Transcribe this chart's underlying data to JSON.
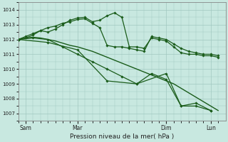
{
  "bg_color": "#c8e8e0",
  "grid_color": "#a0c8c0",
  "line_color": "#1a5c1a",
  "ylim": [
    1006.5,
    1014.5
  ],
  "yticks": [
    1007,
    1008,
    1009,
    1010,
    1011,
    1012,
    1013,
    1014
  ],
  "xlabel": "Pression niveau de la mer( hPa )",
  "xtick_labels": [
    "Sam",
    "Mar",
    "Dim",
    "Lun"
  ],
  "xtick_positions": [
    1,
    8,
    20,
    26
  ],
  "xlim": [
    0,
    28
  ],
  "lines": [
    {
      "x": [
        0,
        1,
        2,
        3,
        4,
        5,
        6,
        7,
        8,
        9,
        10,
        11,
        12,
        13,
        14,
        15,
        16,
        17,
        18,
        19,
        20,
        21,
        22,
        23,
        24,
        25,
        26,
        27
      ],
      "y": [
        1012.0,
        1012.1,
        1012.15,
        1012.1,
        1012.0,
        1011.9,
        1011.75,
        1011.6,
        1011.5,
        1011.35,
        1011.2,
        1011.0,
        1010.8,
        1010.6,
        1010.4,
        1010.2,
        1010.0,
        1009.8,
        1009.6,
        1009.4,
        1009.2,
        1009.0,
        1008.7,
        1008.4,
        1008.1,
        1007.8,
        1007.5,
        1007.2
      ],
      "marker": false,
      "linewidth": 1.0
    },
    {
      "x": [
        0,
        1,
        2,
        3,
        4,
        5,
        6,
        7,
        8,
        9,
        10,
        11,
        12,
        13,
        14,
        15,
        16,
        17,
        18,
        19,
        20,
        21,
        22,
        23,
        24,
        25,
        26,
        27
      ],
      "y": [
        1012.0,
        1012.2,
        1012.4,
        1012.6,
        1012.5,
        1012.7,
        1013.0,
        1013.3,
        1013.45,
        1013.5,
        1013.2,
        1013.3,
        1013.6,
        1013.8,
        1013.5,
        1011.5,
        1011.5,
        1011.4,
        1012.1,
        1012.0,
        1011.9,
        1011.5,
        1011.1,
        1011.0,
        1011.0,
        1010.9,
        1010.9,
        1010.8
      ],
      "marker": true,
      "linewidth": 0.9
    },
    {
      "x": [
        0,
        1,
        2,
        3,
        4,
        5,
        6,
        7,
        8,
        9,
        10,
        11,
        12,
        13,
        14,
        15,
        16,
        17,
        18,
        19,
        20,
        21,
        22,
        23,
        24,
        25,
        26,
        27
      ],
      "y": [
        1012.0,
        1012.1,
        1012.3,
        1012.6,
        1012.8,
        1012.9,
        1013.1,
        1013.2,
        1013.35,
        1013.4,
        1013.1,
        1012.8,
        1011.6,
        1011.5,
        1011.5,
        1011.4,
        1011.3,
        1011.2,
        1012.2,
        1012.1,
        1012.0,
        1011.7,
        1011.4,
        1011.2,
        1011.1,
        1011.0,
        1011.0,
        1010.9
      ],
      "marker": true,
      "linewidth": 0.9
    },
    {
      "x": [
        0,
        2,
        4,
        6,
        8,
        10,
        12,
        14,
        16,
        18,
        20,
        22,
        24,
        26
      ],
      "y": [
        1012.0,
        1012.1,
        1012.0,
        1011.5,
        1011.0,
        1010.5,
        1010.0,
        1009.5,
        1009.0,
        1009.7,
        1009.3,
        1007.5,
        1007.5,
        1007.2
      ],
      "marker": true,
      "linewidth": 0.9
    },
    {
      "x": [
        0,
        4,
        8,
        12,
        16,
        20,
        22,
        24,
        26
      ],
      "y": [
        1012.0,
        1011.8,
        1011.3,
        1009.2,
        1009.0,
        1009.7,
        1007.5,
        1007.7,
        1007.2
      ],
      "marker": true,
      "linewidth": 0.9
    }
  ]
}
